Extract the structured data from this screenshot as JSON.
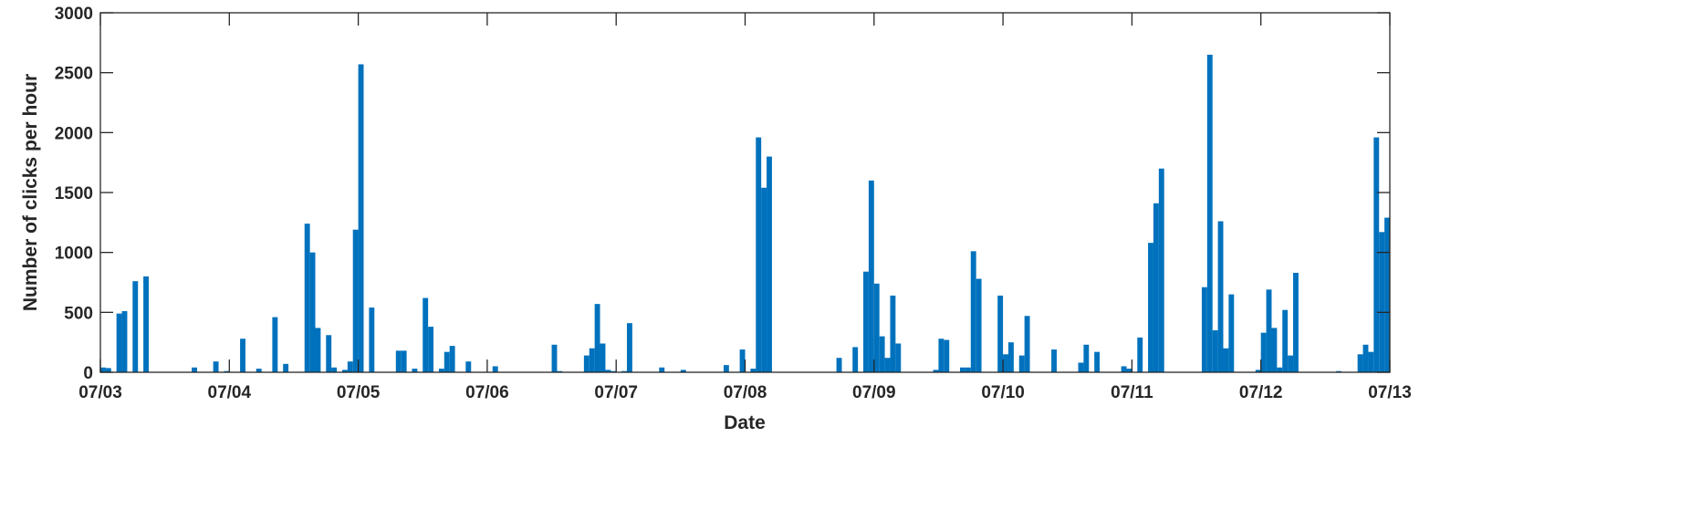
{
  "chart_data": {
    "type": "bar",
    "title": "",
    "xlabel": "Date",
    "ylabel": "Number of clicks per hour",
    "ylim": [
      0,
      3000
    ],
    "yticks": [
      "0",
      "500",
      "1000",
      "1500",
      "2000",
      "2500",
      "3000"
    ],
    "xticks": [
      "07/03",
      "07/04",
      "07/05",
      "07/06",
      "07/07",
      "07/08",
      "07/09",
      "07/10",
      "07/11",
      "07/12",
      "07/13"
    ],
    "x_range_hours": 240,
    "bar_color": "#0072BD",
    "grid": false,
    "bars": [
      [
        "07/03 00:00",
        40
      ],
      [
        "07/03 01:00",
        35
      ],
      [
        "07/03 03:00",
        490
      ],
      [
        "07/03 04:00",
        510
      ],
      [
        "07/03 06:00",
        760
      ],
      [
        "07/03 08:00",
        800
      ],
      [
        "07/03 17:00",
        40
      ],
      [
        "07/03 21:00",
        90
      ],
      [
        "07/03 23:00",
        10
      ],
      [
        "07/04 02:00",
        280
      ],
      [
        "07/04 05:00",
        30
      ],
      [
        "07/04 08:00",
        460
      ],
      [
        "07/04 10:00",
        70
      ],
      [
        "07/04 14:00",
        1240
      ],
      [
        "07/04 15:00",
        1000
      ],
      [
        "07/04 16:00",
        370
      ],
      [
        "07/04 18:00",
        310
      ],
      [
        "07/04 19:00",
        40
      ],
      [
        "07/04 21:00",
        20
      ],
      [
        "07/04 22:00",
        90
      ],
      [
        "07/04 23:00",
        1190
      ],
      [
        "07/05 00:00",
        2570
      ],
      [
        "07/05 02:00",
        540
      ],
      [
        "07/05 07:00",
        180
      ],
      [
        "07/05 08:00",
        180
      ],
      [
        "07/05 10:00",
        30
      ],
      [
        "07/05 12:00",
        620
      ],
      [
        "07/05 13:00",
        380
      ],
      [
        "07/05 15:00",
        30
      ],
      [
        "07/05 16:00",
        170
      ],
      [
        "07/05 17:00",
        220
      ],
      [
        "07/05 20:00",
        90
      ],
      [
        "07/06 01:00",
        50
      ],
      [
        "07/06 12:00",
        230
      ],
      [
        "07/06 13:00",
        10
      ],
      [
        "07/06 18:00",
        140
      ],
      [
        "07/06 19:00",
        200
      ],
      [
        "07/06 20:00",
        570
      ],
      [
        "07/06 21:00",
        240
      ],
      [
        "07/06 22:00",
        20
      ],
      [
        "07/06 23:00",
        10
      ],
      [
        "07/07 01:00",
        10
      ],
      [
        "07/07 02:00",
        410
      ],
      [
        "07/07 08:00",
        40
      ],
      [
        "07/07 12:00",
        20
      ],
      [
        "07/07 20:00",
        60
      ],
      [
        "07/07 23:00",
        190
      ],
      [
        "07/08 01:00",
        30
      ],
      [
        "07/08 02:00",
        1960
      ],
      [
        "07/08 03:00",
        1540
      ],
      [
        "07/08 04:00",
        1800
      ],
      [
        "07/08 17:00",
        120
      ],
      [
        "07/08 20:00",
        210
      ],
      [
        "07/08 22:00",
        840
      ],
      [
        "07/08 23:00",
        1600
      ],
      [
        "07/09 00:00",
        740
      ],
      [
        "07/09 01:00",
        300
      ],
      [
        "07/09 02:00",
        120
      ],
      [
        "07/09 03:00",
        640
      ],
      [
        "07/09 04:00",
        240
      ],
      [
        "07/09 11:00",
        20
      ],
      [
        "07/09 12:00",
        280
      ],
      [
        "07/09 13:00",
        270
      ],
      [
        "07/09 16:00",
        40
      ],
      [
        "07/09 17:00",
        40
      ],
      [
        "07/09 18:00",
        1010
      ],
      [
        "07/09 19:00",
        780
      ],
      [
        "07/09 23:00",
        640
      ],
      [
        "07/10 00:00",
        150
      ],
      [
        "07/10 01:00",
        250
      ],
      [
        "07/10 03:00",
        140
      ],
      [
        "07/10 04:00",
        470
      ],
      [
        "07/10 09:00",
        190
      ],
      [
        "07/10 14:00",
        80
      ],
      [
        "07/10 15:00",
        230
      ],
      [
        "07/10 17:00",
        170
      ],
      [
        "07/10 22:00",
        50
      ],
      [
        "07/10 23:00",
        30
      ],
      [
        "07/11 01:00",
        290
      ],
      [
        "07/11 03:00",
        1080
      ],
      [
        "07/11 04:00",
        1410
      ],
      [
        "07/11 05:00",
        1700
      ],
      [
        "07/11 13:00",
        710
      ],
      [
        "07/11 14:00",
        2650
      ],
      [
        "07/11 15:00",
        350
      ],
      [
        "07/11 16:00",
        1260
      ],
      [
        "07/11 17:00",
        200
      ],
      [
        "07/11 18:00",
        650
      ],
      [
        "07/11 23:00",
        20
      ],
      [
        "07/12 00:00",
        330
      ],
      [
        "07/12 01:00",
        690
      ],
      [
        "07/12 02:00",
        370
      ],
      [
        "07/12 03:00",
        40
      ],
      [
        "07/12 04:00",
        520
      ],
      [
        "07/12 05:00",
        140
      ],
      [
        "07/12 06:00",
        830
      ],
      [
        "07/12 14:00",
        10
      ],
      [
        "07/12 18:00",
        150
      ],
      [
        "07/12 19:00",
        230
      ],
      [
        "07/12 20:00",
        170
      ],
      [
        "07/12 21:00",
        1960
      ],
      [
        "07/12 22:00",
        1170
      ],
      [
        "07/12 23:00",
        1290
      ]
    ]
  }
}
